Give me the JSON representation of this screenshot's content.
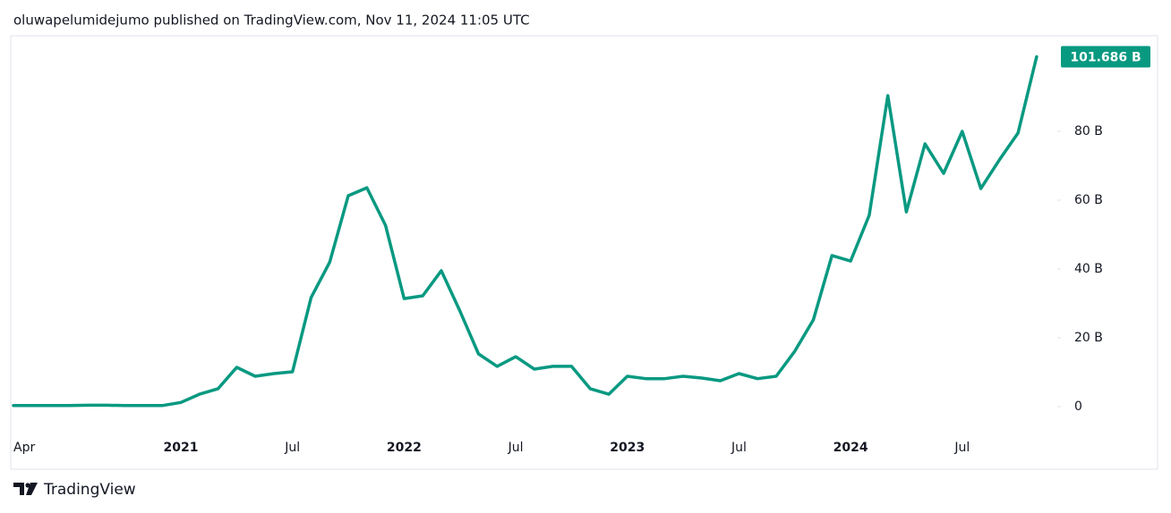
{
  "header": "oluwapelumidejumo published on TradingView.com, Nov 11, 2024 11:05 UTC",
  "footer": "TradingView",
  "chart_data": {
    "type": "line",
    "categories": [
      "Apr",
      null,
      null,
      null,
      null,
      null,
      null,
      null,
      null,
      "2021",
      null,
      null,
      null,
      null,
      null,
      "Jul",
      null,
      null,
      null,
      null,
      null,
      "2022",
      null,
      null,
      null,
      null,
      null,
      "Jul",
      null,
      null,
      null,
      null,
      null,
      "2023",
      null,
      null,
      null,
      null,
      null,
      "Jul",
      null,
      null,
      null,
      null,
      null,
      "2024",
      null,
      null,
      null,
      null,
      null,
      "Jul",
      null,
      null,
      null,
      null
    ],
    "values": [
      0.3,
      0.3,
      0.3,
      0.3,
      0.4,
      0.4,
      0.3,
      0.3,
      0.3,
      1.2,
      3.6,
      5.2,
      11.4,
      8.8,
      9.6,
      10.1,
      31.7,
      42,
      61.3,
      63.6,
      52.7,
      31.4,
      32.2,
      39.5,
      27.8,
      15.3,
      11.7,
      14.5,
      10.9,
      11.7,
      11.7,
      5.2,
      3.6,
      8.8,
      8.1,
      8.1,
      8.8,
      8.3,
      7.5,
      9.6,
      8.1,
      8.8,
      16.1,
      25.2,
      43.9,
      42.3,
      55.6,
      90.4,
      56.6,
      76.4,
      67.8,
      80,
      63.4,
      71.7,
      79.5,
      101.686
    ],
    "last_value_label": "101.686 B",
    "color": "#089981",
    "ylim": [
      -6,
      107.8
    ],
    "yticks": [
      0,
      {
        "value": 20,
        "label": "20 B"
      },
      {
        "value": 40,
        "label": "40 B"
      },
      {
        "value": 60,
        "label": "60 B"
      },
      {
        "value": 80,
        "label": "80 B"
      }
    ],
    "grid": false
  }
}
